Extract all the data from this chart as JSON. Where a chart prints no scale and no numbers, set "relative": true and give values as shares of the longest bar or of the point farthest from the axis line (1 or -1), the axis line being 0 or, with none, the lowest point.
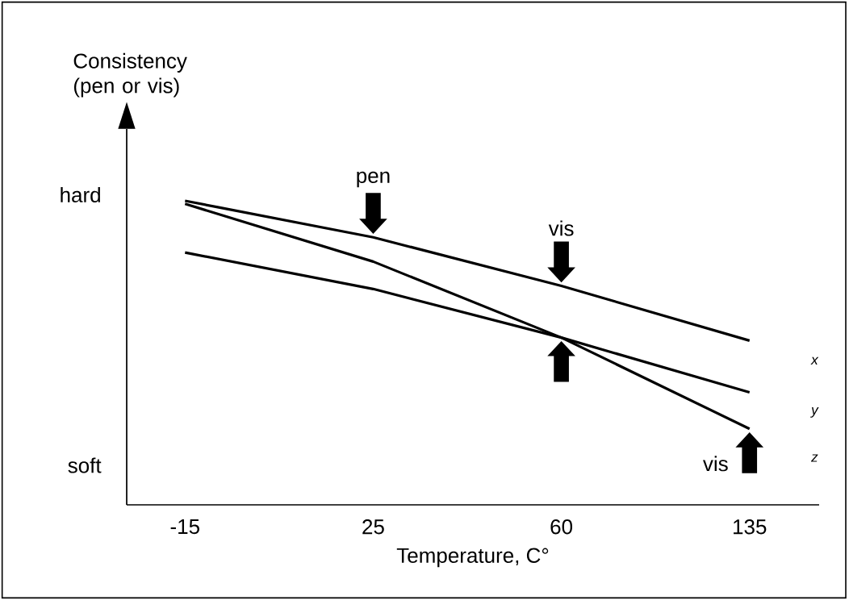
{
  "chart_data": {
    "type": "line",
    "relative": true,
    "ylabel": "Consistency (pen or vis)",
    "xlabel": "Temperature, C°",
    "categories": [
      "-15",
      "25",
      "60",
      "135"
    ],
    "series": [
      {
        "name": "x",
        "color": "#000000",
        "values": [
          1,
          0.88,
          0.72,
          0.54
        ]
      },
      {
        "name": "y",
        "color": "#000000",
        "values": [
          0.83,
          0.71,
          0.55,
          0.37
        ]
      },
      {
        "name": "z",
        "color": "#000000",
        "values": [
          0.99,
          0.8,
          0.55,
          0.25
        ]
      }
    ],
    "annotations": [
      "hard",
      "soft",
      {
        "text": "pen",
        "x": "25",
        "y": 0.88
      },
      {
        "text": "vis",
        "x": "60",
        "y": 0.72
      },
      {
        "text": "vis",
        "x": "135",
        "y": 0.25
      }
    ],
    "legend": false,
    "marker": "none",
    "line_style": "solid"
  }
}
